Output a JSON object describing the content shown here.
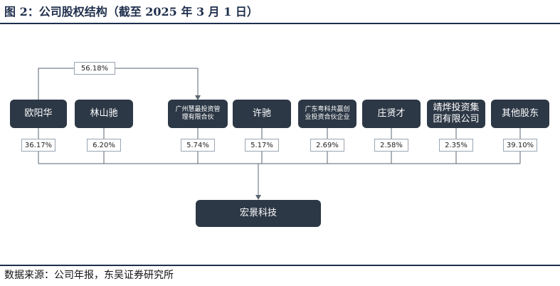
{
  "title": "图 2：公司股权结构（截至 2025 年 3 月 1 日）",
  "source": "数据来源：公司年报，东吴证券研究所",
  "colors": {
    "node_fill": "#2d3846",
    "line": "#5a6570",
    "rule": "#1e2f4f"
  },
  "shareholders": [
    {
      "name": "欧阳华",
      "pct": "36.17%"
    },
    {
      "name": "林山驰",
      "pct": "6.20%"
    },
    {
      "name": "广州慧最投资管\n理有限合伙",
      "pct": "5.74%"
    },
    {
      "name": "许驰",
      "pct": "5.17%"
    },
    {
      "name": "广东粤科共赢创\n业投资合伙企业",
      "pct": "2.69%"
    },
    {
      "name": "庄贤才",
      "pct": "2.58%"
    },
    {
      "name": "靖烨投资集\n团有限公司",
      "pct": "2.35%"
    },
    {
      "name": "其他股东",
      "pct": "39.10%"
    }
  ],
  "control_link": {
    "pct": "56.18%"
  },
  "company": {
    "name": "宏景科技"
  }
}
